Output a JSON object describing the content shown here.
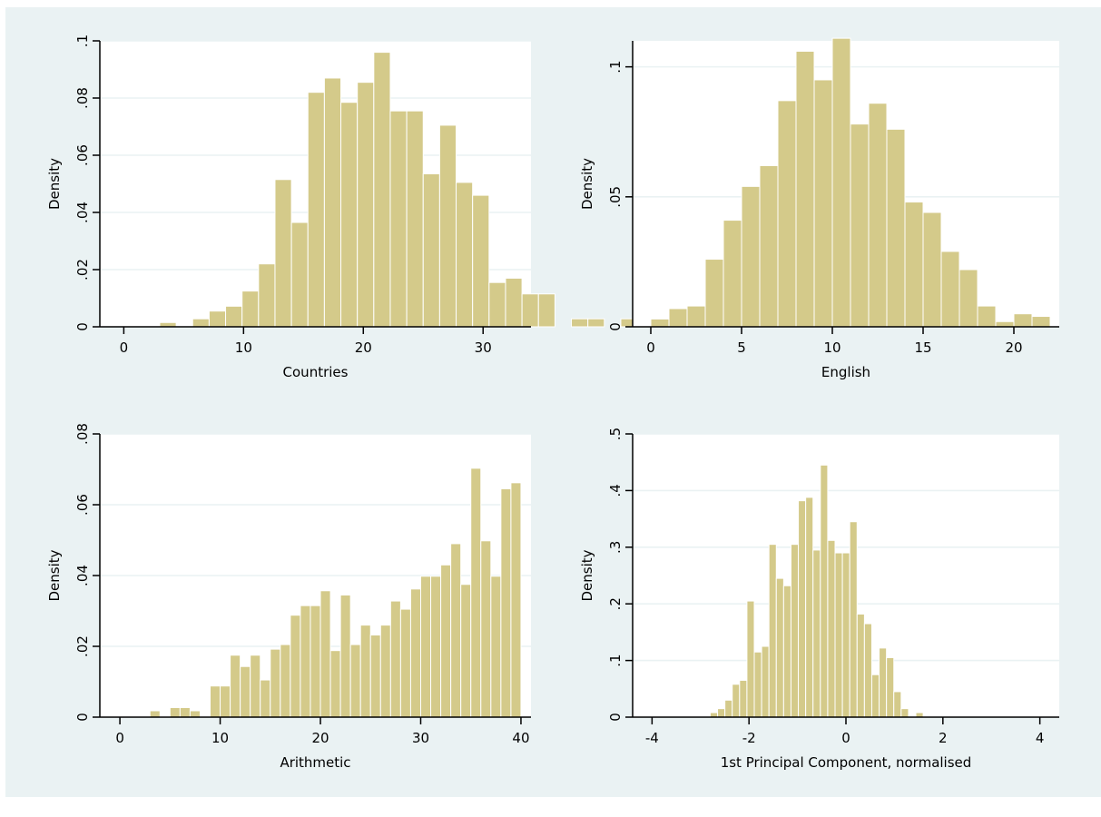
{
  "chart_data": [
    {
      "type": "bar",
      "xlabel": "Countries",
      "ylabel": "Density",
      "xlim": [
        -2,
        34
      ],
      "ylim": [
        0,
        0.1
      ],
      "xticks": [
        0,
        10,
        20,
        30
      ],
      "yticks": [
        0,
        0.02,
        0.04,
        0.06,
        0.08,
        0.1
      ],
      "ytick_labels": [
        "0",
        ".02",
        ".04",
        ".06",
        ".08",
        ".1"
      ],
      "grid": true,
      "bin_width": 1.375,
      "bin_start": 3.0,
      "values": [
        0.0015,
        0,
        0.0028,
        0.0055,
        0.0072,
        0.0125,
        0.022,
        0.0515,
        0.0365,
        0.082,
        0.087,
        0.0785,
        0.0855,
        0.096,
        0.0755,
        0.0755,
        0.0535,
        0.0705,
        0.0505,
        0.046,
        0.0155,
        0.017,
        0.0115,
        0.0115,
        0,
        0.0028,
        0.0028,
        0,
        0.0028
      ]
    },
    {
      "type": "bar",
      "xlabel": "English",
      "ylabel": "Density",
      "xlim": [
        -1,
        22.5
      ],
      "ylim": [
        0,
        0.11
      ],
      "xticks": [
        0,
        5,
        10,
        15,
        20
      ],
      "yticks": [
        0,
        0.05,
        0.1
      ],
      "ytick_labels": [
        "0",
        ".05",
        ".1"
      ],
      "grid": true,
      "bin_width": 1.0,
      "bin_start": 0.0,
      "values": [
        0.003,
        0.007,
        0.008,
        0.026,
        0.041,
        0.054,
        0.062,
        0.087,
        0.106,
        0.095,
        0.111,
        0.078,
        0.086,
        0.076,
        0.048,
        0.044,
        0.029,
        0.022,
        0.008,
        0.002,
        0.005,
        0.004
      ]
    },
    {
      "type": "bar",
      "xlabel": "Arithmetic",
      "ylabel": "Density",
      "xlim": [
        -2,
        41
      ],
      "ylim": [
        0,
        0.08
      ],
      "xticks": [
        0,
        10,
        20,
        30,
        40
      ],
      "yticks": [
        0,
        0.02,
        0.04,
        0.06,
        0.08
      ],
      "ytick_labels": [
        "0",
        ".02",
        ".04",
        ".06",
        ".08"
      ],
      "grid": true,
      "bin_width": 1.0,
      "bin_start": 3.0,
      "values": [
        0.0018,
        0,
        0.0027,
        0.0027,
        0.0018,
        0,
        0.0088,
        0.0088,
        0.0175,
        0.0143,
        0.0175,
        0.0105,
        0.0192,
        0.0205,
        0.0288,
        0.0315,
        0.0315,
        0.0357,
        0.0188,
        0.0345,
        0.0205,
        0.026,
        0.0232,
        0.026,
        0.0328,
        0.0305,
        0.0362,
        0.0398,
        0.0398,
        0.043,
        0.049,
        0.0375,
        0.0703,
        0.0498,
        0.0398,
        0.0645,
        0.0662
      ]
    },
    {
      "type": "bar",
      "xlabel": "1st Principal Component, normalised",
      "ylabel": "Density",
      "xlim": [
        -4.4,
        4.4
      ],
      "ylim": [
        0,
        0.5
      ],
      "xticks": [
        -4,
        -2,
        0,
        2,
        4
      ],
      "yticks": [
        0,
        0.1,
        0.2,
        0.3,
        0.4,
        0.5
      ],
      "ytick_labels": [
        "0",
        ".1",
        ".2",
        ".3",
        ".4",
        ".5"
      ],
      "grid": true,
      "bin_width": 0.1515,
      "bin_start": -2.8,
      "values": [
        0.008,
        0.015,
        0.03,
        0.058,
        0.065,
        0.205,
        0.115,
        0.125,
        0.305,
        0.245,
        0.232,
        0.305,
        0.382,
        0.388,
        0.295,
        0.445,
        0.312,
        0.29,
        0.29,
        0.345,
        0.182,
        0.165,
        0.075,
        0.122,
        0.105,
        0.045,
        0.015,
        0,
        0.008
      ]
    }
  ],
  "colors": {
    "page_background": "#ffffff",
    "outer_background": "#eaf2f3",
    "plot_background": "#ffffff",
    "bar_fill": "#d4ca8a",
    "bar_stroke": "#ffffff",
    "gridline": "#eaf2f3",
    "axis": "#000000"
  }
}
